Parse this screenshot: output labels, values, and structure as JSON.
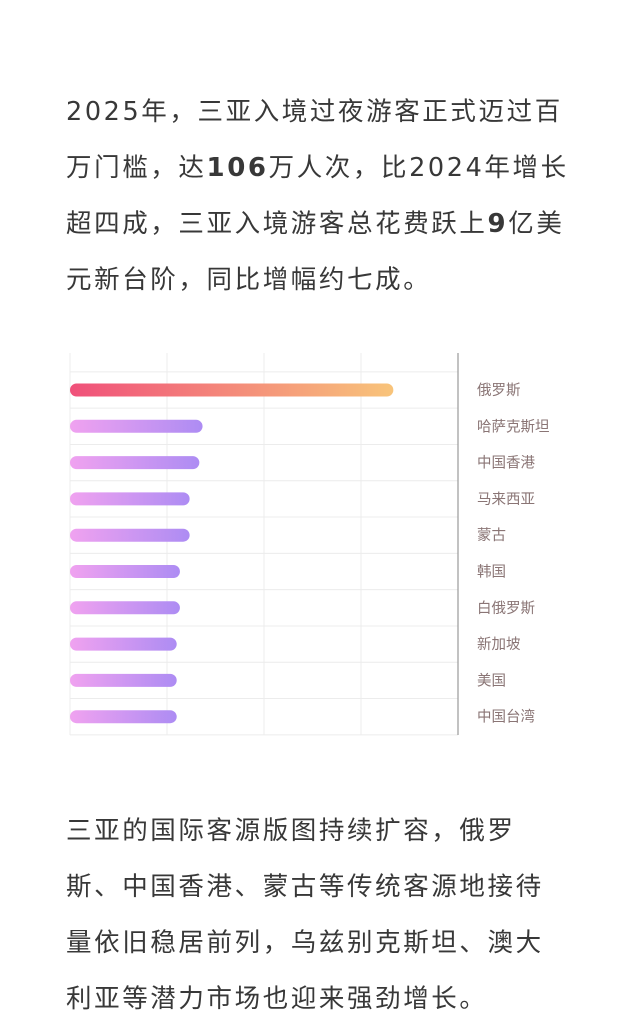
{
  "intro": {
    "before_count": "2025年，三亚入境过夜游客正式迈过百万门槛，达",
    "count": "106",
    "after_count": "万人次，比2024年增长超四成，三亚入境游客总花费跃上",
    "spend": "9",
    "after_spend": "亿美元新台阶，同比增幅约七成。"
  },
  "outro": {
    "text": "三亚的国际客源版图持续扩容，俄罗斯、中国香港、蒙古等传统客源地接待量依旧稳居前列，乌兹别克斯坦、澳大利亚等潜力市场也迎来强劲增长。"
  },
  "chart_data": {
    "type": "bar",
    "orientation": "horizontal",
    "title": "",
    "xlabel": "",
    "ylabel": "",
    "categories": [
      "俄罗斯",
      "哈萨克斯坦",
      "中国香港",
      "马来西亚",
      "蒙古",
      "韩国",
      "白俄罗斯",
      "新加坡",
      "美国",
      "中国台湾"
    ],
    "values": [
      100,
      41,
      40,
      37,
      37,
      34,
      34,
      33,
      33,
      33
    ],
    "value_scale": "relative, no axis values shown",
    "xlim": [
      0,
      120
    ],
    "grid": true,
    "legend": "none",
    "colors": {
      "top_bar_start": "#f0507a",
      "top_bar_end": "#f8c47a",
      "bar_start": "#f0a2f0",
      "bar_end": "#ad8cf3",
      "label": "#8a7575",
      "grid": "#ececec",
      "axis": "#999999"
    }
  }
}
